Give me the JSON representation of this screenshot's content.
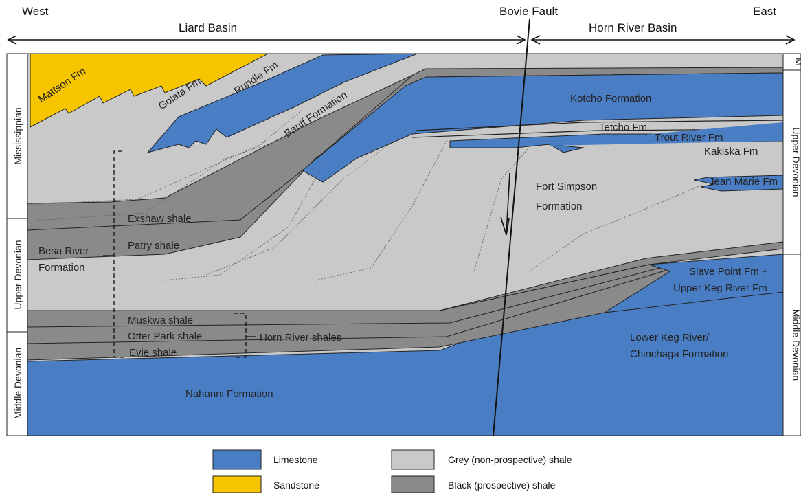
{
  "header": {
    "west": "West",
    "east": "East",
    "liard_basin": "Liard Basin",
    "horn_river_basin": "Horn River Basin",
    "bovie_fault": "Bovie Fault"
  },
  "left_axis": {
    "mississippian": "Mississippian",
    "upper_devonian": "Upper Devonian",
    "middle_devonian": "Middle Devonian"
  },
  "right_axis": {
    "m": "M",
    "upper_devonian": "Upper Devonian",
    "middle_devonian": "Middle Devonian"
  },
  "units": {
    "mattson": "Mattson Fm",
    "golata": "Golata Fm",
    "rundle": "Rundle Fm",
    "banff": "Banff Formation",
    "kotcho": "Kotcho Formation",
    "tetcho": "Tetcho Fm",
    "trout_river": "Trout River Fm",
    "kakiska": "Kakiska Fm",
    "jean_marie": "Jean Marie Fm",
    "fort_simpson_1": "Fort Simpson",
    "fort_simpson_2": "Formation",
    "exshaw": "Exshaw shale",
    "patry": "Patry shale",
    "besa_river_1": "Besa River",
    "besa_river_2": "Formation",
    "slave_point_1": "Slave Point Fm +",
    "slave_point_2": "Upper  Keg River Fm",
    "muskwa": "Muskwa shale",
    "otter_park": "Otter Park shale",
    "evie": "Evie shale",
    "horn_river_shales": "Horn River shales",
    "lower_keg_1": "Lower Keg River/",
    "lower_keg_2": "Chinchaga Formation",
    "nahanni": "Nahanni Formation"
  },
  "legend": [
    {
      "label": "Limestone",
      "color": "#4a7ec4"
    },
    {
      "label": "Sandstone",
      "color": "#f7c500"
    },
    {
      "label": "Grey (non-prospective) shale",
      "color": "#c9c9c9"
    },
    {
      "label": "Black (prospective) shale",
      "color": "#8a8a8a"
    }
  ],
  "colors": {
    "limestone": "#4a7ec4",
    "sandstone": "#f7c500",
    "grey_shale": "#c9c9c9",
    "black_shale": "#8a8a8a"
  }
}
